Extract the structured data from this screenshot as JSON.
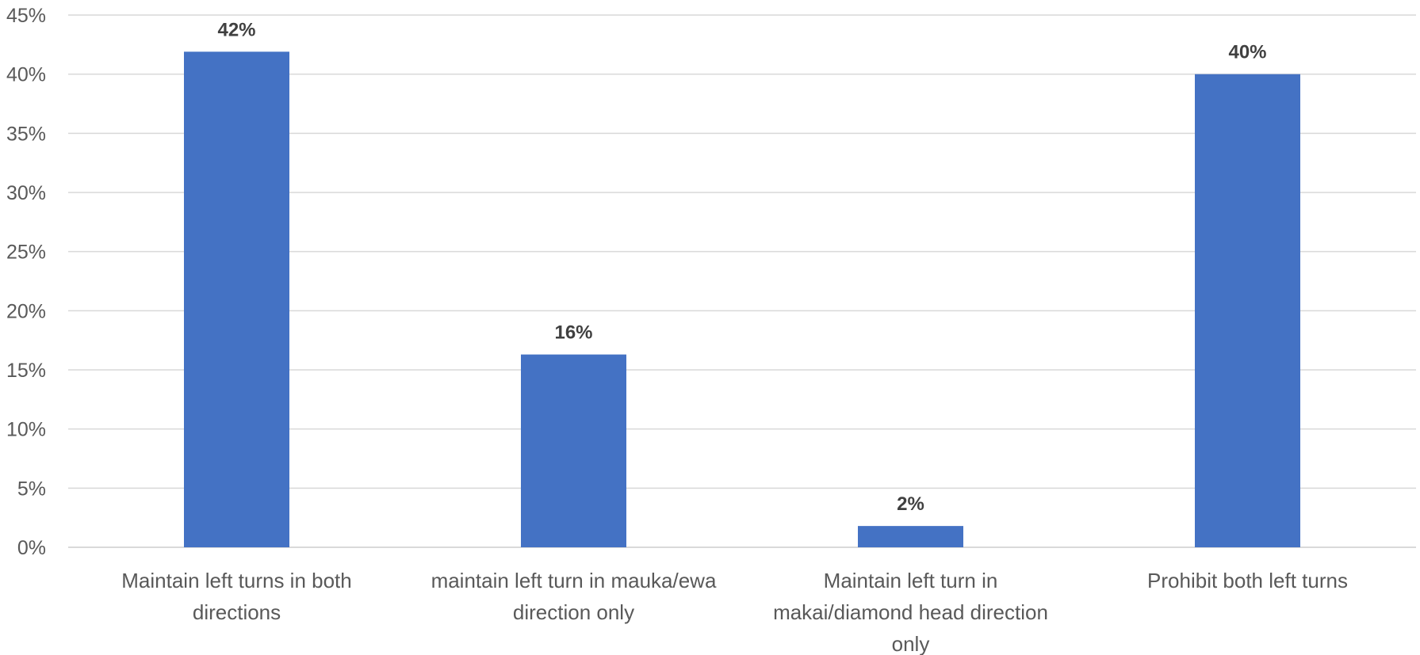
{
  "chart_data": {
    "type": "bar",
    "categories": [
      [
        "Maintain left turns in both",
        "directions"
      ],
      [
        "maintain left turn in mauka/ewa",
        "direction only"
      ],
      [
        "Maintain left turn in",
        "makai/diamond head direction",
        "only"
      ],
      [
        "Prohibit both left turns"
      ]
    ],
    "values": [
      41.9,
      16.3,
      1.8,
      40.0
    ],
    "data_labels": [
      "42%",
      "16%",
      "2%",
      "40%"
    ],
    "y_ticks": [
      "0%",
      "5%",
      "10%",
      "15%",
      "20%",
      "25%",
      "30%",
      "35%",
      "40%",
      "45%"
    ],
    "ylim": [
      0,
      45
    ],
    "grid": true,
    "legend": "none",
    "title": "",
    "xlabel": "",
    "ylabel": "",
    "colors": {
      "bar": "#4472C4",
      "grid": "#D9D9D9"
    }
  }
}
